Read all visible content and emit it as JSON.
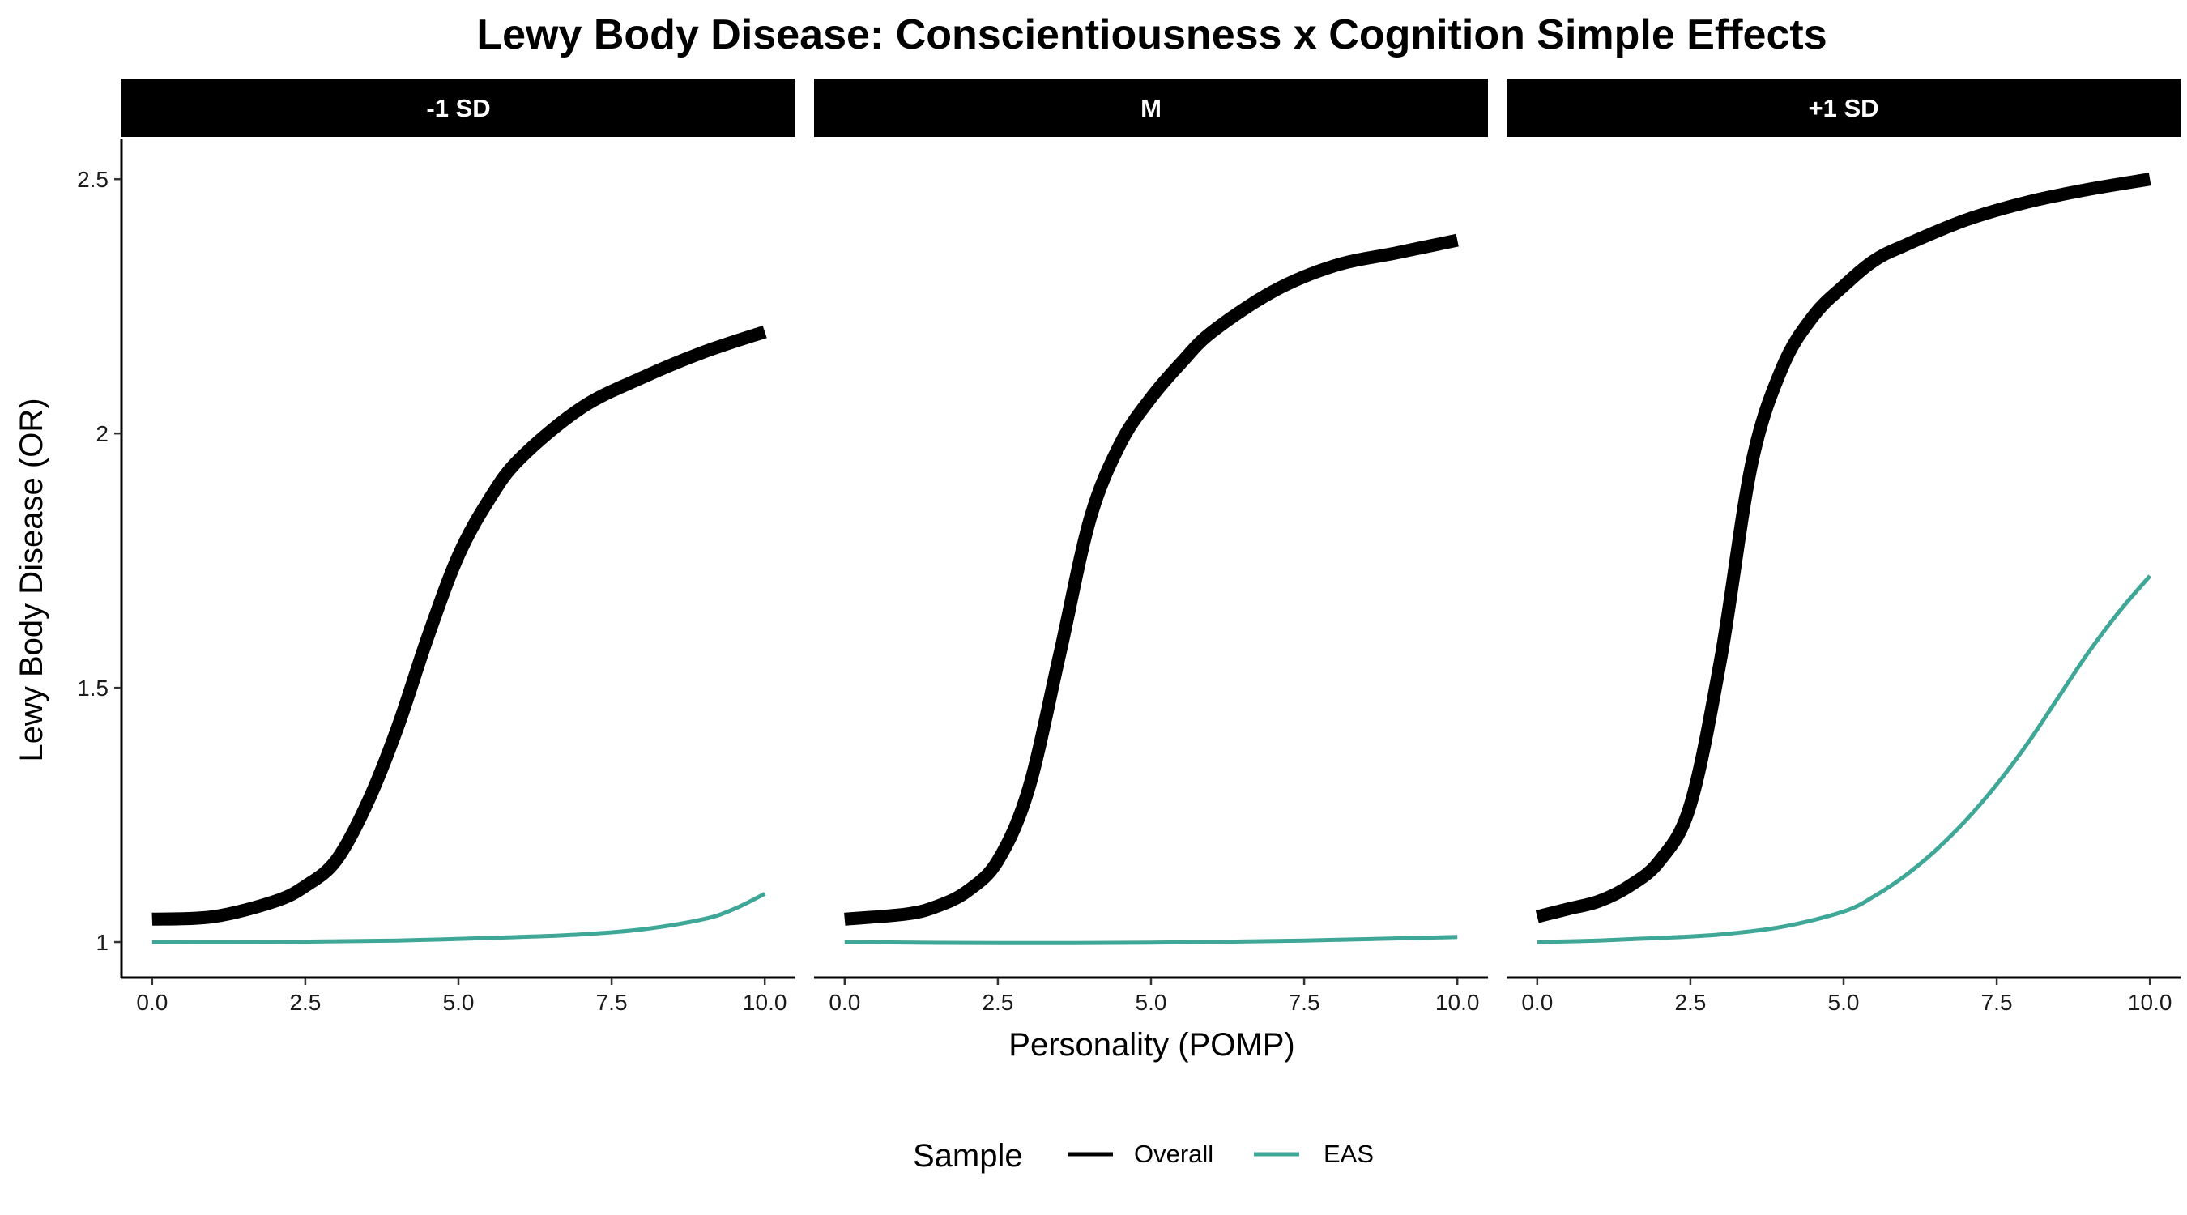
{
  "chart_data": {
    "type": "line",
    "title": "Lewy Body Disease: Conscientiousness x Cognition Simple Effects",
    "xlabel": "Personality (POMP)",
    "ylabel": "Lewy Body Disease (OR)",
    "xlim": [
      -0.5,
      10.5
    ],
    "ylim": [
      0.93,
      2.58
    ],
    "x_ticks": [
      0,
      2.5,
      5,
      7.5,
      10
    ],
    "x_tick_labels": [
      "0.0",
      "2.5",
      "5.0",
      "7.5",
      "10.0"
    ],
    "y_ticks": [
      1,
      1.5,
      2,
      2.5
    ],
    "y_tick_labels": [
      "1",
      "1.5",
      "2",
      "2.5"
    ],
    "grid": false,
    "legend": {
      "title": "Sample",
      "position": "bottom",
      "entries": [
        {
          "label": "Overall",
          "color": "#000000"
        },
        {
          "label": "EAS",
          "color": "#3fa797"
        }
      ]
    },
    "facets": [
      {
        "label": "-1 SD",
        "series": [
          {
            "name": "Overall",
            "color": "#000000",
            "x": [
              0,
              1,
              2,
              2.5,
              3,
              3.5,
              4,
              4.5,
              5,
              5.5,
              6,
              7,
              8,
              9,
              10
            ],
            "y": [
              1.045,
              1.05,
              1.08,
              1.11,
              1.16,
              1.27,
              1.42,
              1.6,
              1.76,
              1.87,
              1.95,
              2.05,
              2.11,
              2.16,
              2.2
            ]
          },
          {
            "name": "EAS",
            "color": "#3fa797",
            "x": [
              0,
              2,
              4,
              6,
              7,
              8,
              9,
              9.5,
              10
            ],
            "y": [
              1.0,
              1.0,
              1.003,
              1.01,
              1.015,
              1.025,
              1.045,
              1.065,
              1.095
            ]
          }
        ]
      },
      {
        "label": "M",
        "series": [
          {
            "name": "Overall",
            "color": "#000000",
            "x": [
              0,
              1,
              1.5,
              2,
              2.5,
              3,
              3.5,
              4,
              4.5,
              5,
              5.5,
              6,
              7,
              8,
              9,
              10
            ],
            "y": [
              1.045,
              1.055,
              1.07,
              1.1,
              1.16,
              1.3,
              1.56,
              1.83,
              1.98,
              2.07,
              2.14,
              2.2,
              2.28,
              2.33,
              2.355,
              2.38
            ]
          },
          {
            "name": "EAS",
            "color": "#3fa797",
            "x": [
              0,
              2.5,
              5,
              7.5,
              10
            ],
            "y": [
              1.0,
              0.998,
              0.999,
              1.003,
              1.01
            ]
          }
        ]
      },
      {
        "label": "+1 SD",
        "series": [
          {
            "name": "Overall",
            "color": "#000000",
            "x": [
              0,
              0.5,
              1,
              1.5,
              2,
              2.5,
              3,
              3.5,
              4,
              4.5,
              5,
              5.5,
              6,
              7,
              8,
              9,
              10
            ],
            "y": [
              1.05,
              1.065,
              1.08,
              1.11,
              1.16,
              1.27,
              1.56,
              1.94,
              2.13,
              2.23,
              2.29,
              2.34,
              2.37,
              2.42,
              2.455,
              2.48,
              2.5
            ]
          },
          {
            "name": "EAS",
            "color": "#3fa797",
            "x": [
              0,
              1,
              2,
              3,
              4,
              5,
              5.5,
              6,
              6.5,
              7,
              7.5,
              8,
              8.5,
              9,
              9.5,
              10
            ],
            "y": [
              1.0,
              1.003,
              1.008,
              1.015,
              1.03,
              1.06,
              1.09,
              1.13,
              1.18,
              1.24,
              1.31,
              1.39,
              1.48,
              1.57,
              1.65,
              1.72
            ]
          }
        ]
      }
    ]
  }
}
